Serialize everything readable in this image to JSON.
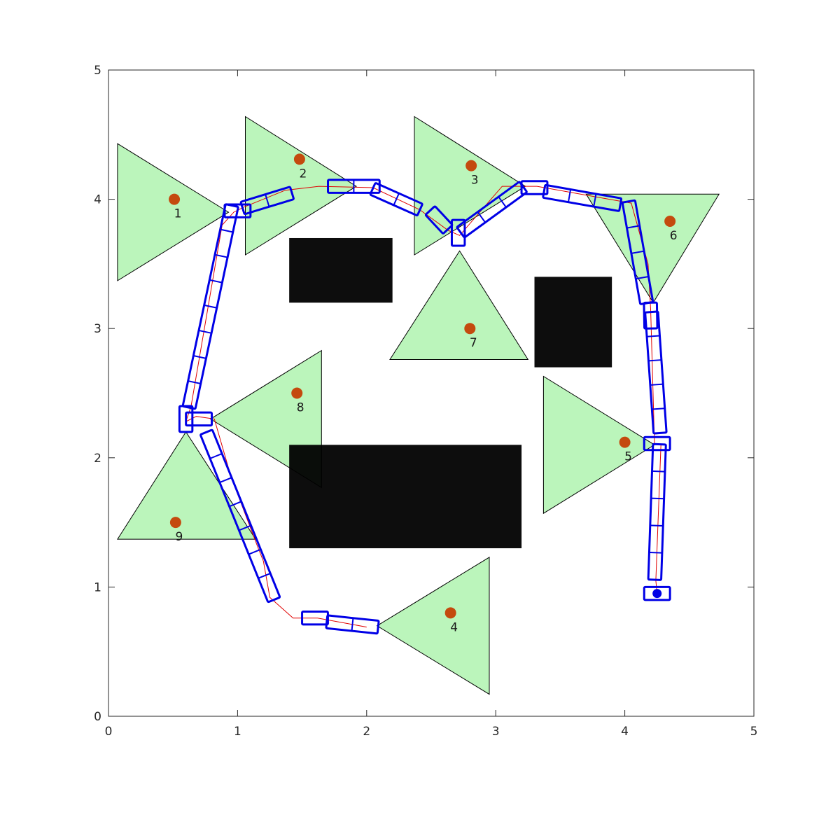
{
  "chart_data": {
    "type": "scatter",
    "title": "",
    "xlabel": "",
    "ylabel": "",
    "xlim": [
      0,
      5
    ],
    "ylim": [
      0,
      5
    ],
    "x_ticks": [
      0,
      1,
      2,
      3,
      4,
      5
    ],
    "y_ticks": [
      0,
      1,
      2,
      3,
      4,
      5
    ],
    "x_tick_labels": [
      "0",
      "1",
      "2",
      "3",
      "4",
      "5"
    ],
    "y_tick_labels": [
      "0",
      "1",
      "2",
      "3",
      "4",
      "5"
    ],
    "grid": false,
    "colors": {
      "triangle_fill": "#bbf5bb",
      "triangle_edge": "#000000",
      "obstacle": "#000000",
      "target": "#c44a0e",
      "path": "#e00000",
      "robot_outline": "#0000e6",
      "robot_start": "#0000e6"
    },
    "targets": [
      {
        "label": "1",
        "x": 0.51,
        "y": 4.0
      },
      {
        "label": "2",
        "x": 1.48,
        "y": 4.31
      },
      {
        "label": "3",
        "x": 2.81,
        "y": 4.26
      },
      {
        "label": "4",
        "x": 2.65,
        "y": 0.8
      },
      {
        "label": "5",
        "x": 4.0,
        "y": 2.12
      },
      {
        "label": "6",
        "x": 4.35,
        "y": 3.83
      },
      {
        "label": "7",
        "x": 2.8,
        "y": 3.0
      },
      {
        "label": "8",
        "x": 1.46,
        "y": 2.5
      },
      {
        "label": "9",
        "x": 0.52,
        "y": 1.5
      }
    ],
    "sensor_triangles": [
      {
        "target": "1",
        "points": [
          [
            0.07,
            4.43
          ],
          [
            0.07,
            3.37
          ],
          [
            0.93,
            3.9
          ]
        ]
      },
      {
        "target": "2",
        "points": [
          [
            1.06,
            4.64
          ],
          [
            1.06,
            3.57
          ],
          [
            1.92,
            4.1
          ]
        ]
      },
      {
        "target": "3",
        "points": [
          [
            2.37,
            4.64
          ],
          [
            2.37,
            3.57
          ],
          [
            3.23,
            4.1
          ]
        ]
      },
      {
        "target": "4",
        "points": [
          [
            2.95,
            1.23
          ],
          [
            2.95,
            0.17
          ],
          [
            2.08,
            0.7
          ]
        ]
      },
      {
        "target": "5",
        "points": [
          [
            3.37,
            2.63
          ],
          [
            3.37,
            1.57
          ],
          [
            4.23,
            2.1
          ]
        ]
      },
      {
        "target": "6",
        "points": [
          [
            3.7,
            4.04
          ],
          [
            4.73,
            4.04
          ],
          [
            4.22,
            3.2
          ]
        ]
      },
      {
        "target": "7",
        "points": [
          [
            2.72,
            3.6
          ],
          [
            2.18,
            2.76
          ],
          [
            3.25,
            2.76
          ]
        ]
      },
      {
        "target": "8",
        "points": [
          [
            1.65,
            2.83
          ],
          [
            1.65,
            1.77
          ],
          [
            0.79,
            2.3
          ]
        ]
      },
      {
        "target": "9",
        "points": [
          [
            0.6,
            2.2
          ],
          [
            0.07,
            1.37
          ],
          [
            1.14,
            1.37
          ]
        ]
      }
    ],
    "obstacles": [
      {
        "x1": 1.4,
        "y1": 3.2,
        "x2": 2.2,
        "y2": 3.7
      },
      {
        "x1": 3.3,
        "y1": 2.7,
        "x2": 3.9,
        "y2": 3.4
      },
      {
        "x1": 1.4,
        "y1": 1.3,
        "x2": 3.2,
        "y2": 2.1
      }
    ],
    "robot_start": {
      "x": 4.25,
      "y": 0.95
    },
    "path": [
      [
        4.25,
        0.95
      ],
      [
        4.24,
        1.05
      ],
      [
        4.28,
        2.1
      ],
      [
        4.23,
        2.11
      ],
      [
        4.2,
        3.15
      ],
      [
        4.18,
        3.5
      ],
      [
        4.05,
        3.97
      ],
      [
        3.88,
        4.0
      ],
      [
        3.32,
        4.1
      ],
      [
        3.05,
        4.1
      ],
      [
        2.72,
        3.72
      ],
      [
        2.63,
        3.76
      ],
      [
        2.41,
        3.92
      ],
      [
        2.05,
        4.09
      ],
      [
        1.63,
        4.1
      ],
      [
        1.37,
        4.07
      ],
      [
        1.05,
        3.94
      ],
      [
        0.97,
        3.9
      ],
      [
        0.88,
        3.8
      ],
      [
        0.64,
        2.4
      ],
      [
        0.6,
        2.28
      ],
      [
        0.68,
        2.32
      ],
      [
        0.82,
        2.3
      ],
      [
        0.95,
        1.85
      ],
      [
        1.16,
        1.3
      ],
      [
        1.2,
        1.2
      ],
      [
        1.25,
        0.92
      ],
      [
        1.43,
        0.76
      ],
      [
        1.62,
        0.76
      ],
      [
        2.0,
        0.69
      ]
    ],
    "robot_segments": [
      {
        "x": 4.25,
        "y": 0.95,
        "len": 0.2,
        "wid": 0.1,
        "ang": 0,
        "div": 1
      },
      {
        "x": 4.25,
        "y": 1.58,
        "len": 1.05,
        "wid": 0.1,
        "ang": 88,
        "div": 5
      },
      {
        "x": 4.25,
        "y": 2.11,
        "len": 0.2,
        "wid": 0.1,
        "ang": 0,
        "div": 1
      },
      {
        "x": 4.24,
        "y": 2.66,
        "len": 0.94,
        "wid": 0.1,
        "ang": 94,
        "div": 5
      },
      {
        "x": 4.2,
        "y": 3.1,
        "len": 0.2,
        "wid": 0.1,
        "ang": 91,
        "div": 1
      },
      {
        "x": 4.1,
        "y": 3.59,
        "len": 0.8,
        "wid": 0.1,
        "ang": 100,
        "div": 4
      },
      {
        "x": 3.67,
        "y": 4.01,
        "len": 0.6,
        "wid": 0.1,
        "ang": -10,
        "div": 3
      },
      {
        "x": 3.3,
        "y": 4.09,
        "len": 0.2,
        "wid": 0.1,
        "ang": 0,
        "div": 1
      },
      {
        "x": 2.97,
        "y": 3.92,
        "len": 0.6,
        "wid": 0.1,
        "ang": 36,
        "div": 3
      },
      {
        "x": 2.71,
        "y": 3.74,
        "len": 0.2,
        "wid": 0.1,
        "ang": 90,
        "div": 1
      },
      {
        "x": 2.56,
        "y": 3.84,
        "len": 0.2,
        "wid": 0.1,
        "ang": -47,
        "div": 1
      },
      {
        "x": 2.23,
        "y": 4.0,
        "len": 0.4,
        "wid": 0.1,
        "ang": -24,
        "div": 2
      },
      {
        "x": 1.9,
        "y": 4.1,
        "len": 0.4,
        "wid": 0.1,
        "ang": 0,
        "div": 2
      },
      {
        "x": 1.23,
        "y": 3.99,
        "len": 0.4,
        "wid": 0.1,
        "ang": 17,
        "div": 2
      },
      {
        "x": 1.0,
        "y": 3.91,
        "len": 0.2,
        "wid": 0.1,
        "ang": 0,
        "div": 1
      },
      {
        "x": 0.79,
        "y": 3.17,
        "len": 1.6,
        "wid": 0.1,
        "ang": 78,
        "div": 8
      },
      {
        "x": 0.6,
        "y": 2.3,
        "len": 0.2,
        "wid": 0.1,
        "ang": 90,
        "div": 1
      },
      {
        "x": 0.7,
        "y": 2.3,
        "len": 0.2,
        "wid": 0.1,
        "ang": 0,
        "div": 1
      },
      {
        "x": 1.02,
        "y": 1.55,
        "len": 1.4,
        "wid": 0.1,
        "ang": -68,
        "div": 7
      },
      {
        "x": 1.6,
        "y": 0.76,
        "len": 0.2,
        "wid": 0.1,
        "ang": 0,
        "div": 1
      },
      {
        "x": 1.89,
        "y": 0.71,
        "len": 0.4,
        "wid": 0.1,
        "ang": -6,
        "div": 2
      }
    ]
  }
}
